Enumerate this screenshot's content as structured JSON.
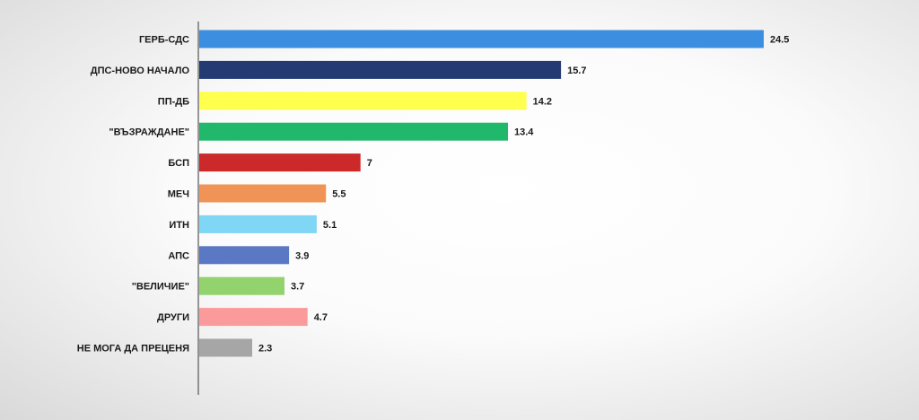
{
  "chart_data": {
    "type": "bar",
    "orientation": "horizontal",
    "categories": [
      "ГЕРБ-СДС",
      "ДПС-НОВО НАЧАЛО",
      "ПП-ДБ",
      "\"ВЪЗРАЖДАНЕ\"",
      "БСП",
      "МЕЧ",
      "ИТН",
      "АПС",
      "\"ВЕЛИЧИЕ\"",
      "ДРУГИ",
      "НЕ МОГА ДА ПРЕЦЕНЯ"
    ],
    "values": [
      24.5,
      15.7,
      14.2,
      13.4,
      7,
      5.5,
      5.1,
      3.9,
      3.7,
      4.7,
      2.3
    ],
    "value_labels": [
      "24.5",
      "15.7",
      "14.2",
      "13.4",
      "7",
      "5.5",
      "5.1",
      "3.9",
      "3.7",
      "4.7",
      "2.3"
    ],
    "colors": [
      "#3b8ee0",
      "#243a73",
      "#ffff4d",
      "#22b86b",
      "#cc2a2a",
      "#ef9456",
      "#7fd6f5",
      "#5b78c5",
      "#92d36e",
      "#fb9a9a",
      "#a6a6a6"
    ],
    "title": "",
    "xlabel": "",
    "ylabel": "",
    "xlim": [
      0,
      24.5
    ],
    "grid": false,
    "legend": "none"
  }
}
